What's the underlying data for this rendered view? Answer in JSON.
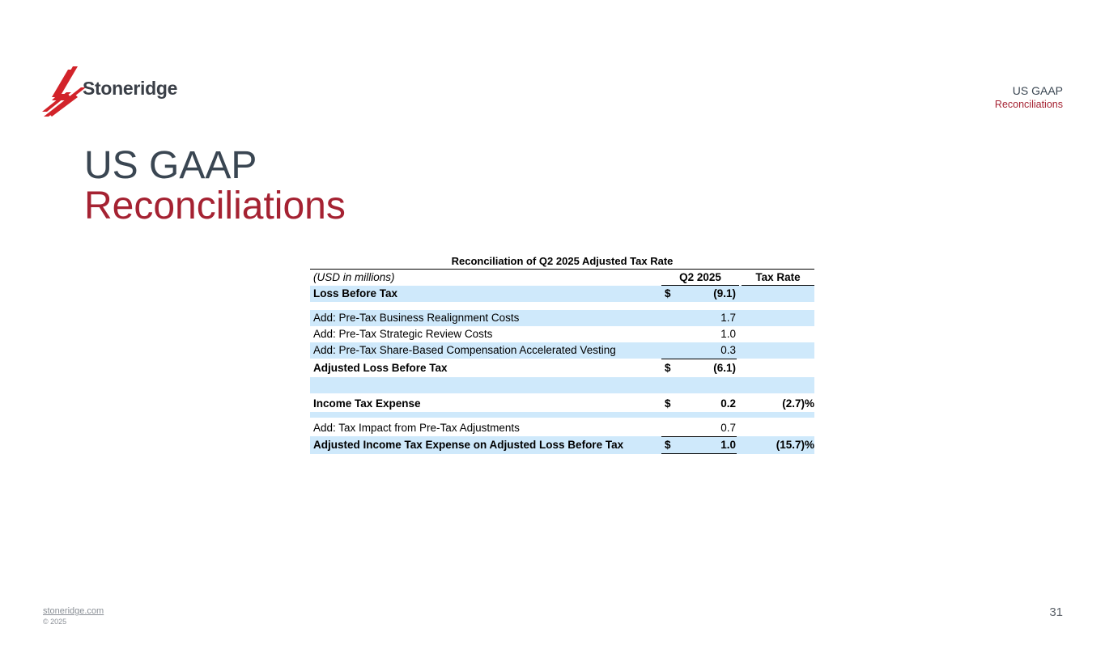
{
  "brand": {
    "name": "Stoneridge",
    "logo_color": "#d2232a"
  },
  "section_tag": {
    "line1": "US GAAP",
    "line2": "Reconciliations"
  },
  "title": {
    "line1": "US GAAP",
    "line2": "Reconciliations"
  },
  "table": {
    "title": "Reconciliation of Q2 2025 Adjusted Tax Rate",
    "units": "(USD in millions)",
    "col_amount": "Q2 2025",
    "col_rate": "Tax Rate",
    "rows": {
      "loss_before_tax": {
        "label": "Loss Before Tax",
        "dollar": "$",
        "value": "(9.1)"
      },
      "business_realignment": {
        "label": "Add: Pre-Tax Business Realignment Costs",
        "value": "1.7"
      },
      "strategic_review": {
        "label": "Add: Pre-Tax Strategic Review Costs",
        "value": "1.0"
      },
      "share_based": {
        "label": "Add: Pre-Tax Share-Based Compensation Accelerated Vesting",
        "value": "0.3"
      },
      "adjusted_loss": {
        "label": "Adjusted Loss Before Tax",
        "dollar": "$",
        "value": "(6.1)"
      },
      "income_tax_expense": {
        "label": "Income Tax Expense",
        "dollar": "$",
        "value": "0.2",
        "rate": "(2.7)%"
      },
      "tax_impact": {
        "label": "Add: Tax Impact from Pre-Tax Adjustments",
        "value": "0.7"
      },
      "adjusted_income_tax": {
        "label": "Adjusted Income Tax Expense on Adjusted Loss Before Tax",
        "dollar": "$",
        "value": "1.0",
        "rate": "(15.7)%"
      }
    }
  },
  "footer": {
    "link": "stoneridge.com",
    "copyright": "© 2025",
    "page_number": "31"
  }
}
